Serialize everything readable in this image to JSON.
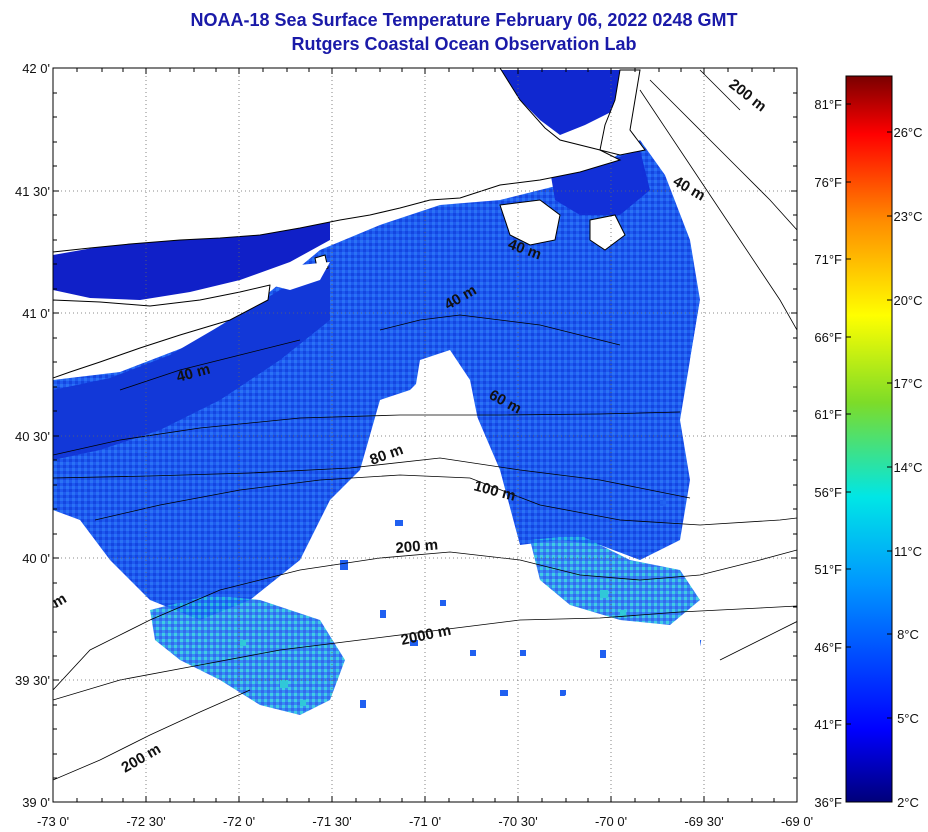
{
  "header": {
    "title": "NOAA-18 Sea Surface Temperature February 06, 2022 0248 GMT",
    "subtitle": "Rutgers Coastal Ocean Observation Lab"
  },
  "map": {
    "lat_ticks": [
      "42 0'",
      "41 30'",
      "41 0'",
      "40 30'",
      "40 0'",
      "39 30'",
      "39 0'"
    ],
    "lon_ticks": [
      "-73 0'",
      "-72 30'",
      "-72 0'",
      "-71 30'",
      "-71 0'",
      "-70 30'",
      "-70 0'",
      "-69 30'",
      "-69 0'"
    ],
    "contour_labels": [
      {
        "id": "c200-ne",
        "text": "200 m"
      },
      {
        "id": "c40-n",
        "text": "40 m"
      },
      {
        "id": "c40-c",
        "text": "40 m"
      },
      {
        "id": "c40-w",
        "text": "40 m"
      },
      {
        "id": "c40-gulf",
        "text": "40 m"
      },
      {
        "id": "c60",
        "text": "60 m"
      },
      {
        "id": "c80",
        "text": "80 m"
      },
      {
        "id": "c100",
        "text": "100 m"
      },
      {
        "id": "c200-s",
        "text": "200 m"
      },
      {
        "id": "c2000",
        "text": "2000 m"
      },
      {
        "id": "c200-sw",
        "text": "200 m"
      },
      {
        "id": "cm-w",
        "text": "m"
      }
    ]
  },
  "colorbar": {
    "fahrenheit": [
      "81°F",
      "76°F",
      "71°F",
      "66°F",
      "61°F",
      "56°F",
      "51°F",
      "46°F",
      "41°F",
      "36°F"
    ],
    "celsius": [
      "26°C",
      "23°C",
      "20°C",
      "17°C",
      "14°C",
      "11°C",
      "8°C",
      "5°C",
      "2°C"
    ]
  },
  "colors": {
    "title": "#1a1aa8",
    "cold": "#0a14c8",
    "mid": "#1e64f0",
    "warm": "#2ad2d2",
    "land": "#ffffff",
    "coast": "#000000"
  }
}
